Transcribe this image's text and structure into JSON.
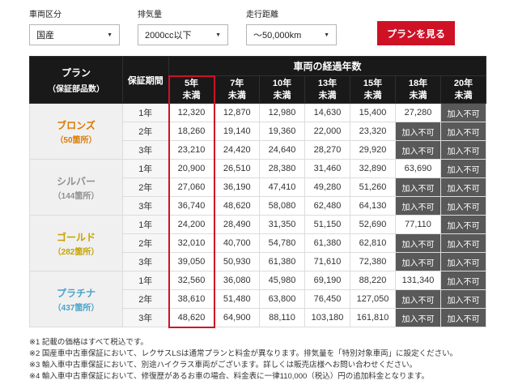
{
  "colors": {
    "accent_red": "#cf1126",
    "header_bg": "#191919",
    "na_bg": "#595959"
  },
  "filters": {
    "vehicle_category": {
      "label": "車両区分",
      "value": "国産"
    },
    "displacement": {
      "label": "排気量",
      "value": "2000cc以下"
    },
    "mileage": {
      "label": "走行距離",
      "value": "～50,000km"
    },
    "submit_label": "プランを見る"
  },
  "table": {
    "header": {
      "plan_line1": "プラン",
      "plan_line2": "（保証部品数）",
      "warranty_period": "保証期間",
      "age_group": "車両の経過年数",
      "age_columns": [
        {
          "line1": "5年",
          "line2": "未満"
        },
        {
          "line1": "7年",
          "line2": "未満"
        },
        {
          "line1": "10年",
          "line2": "未満"
        },
        {
          "line1": "13年",
          "line2": "未満"
        },
        {
          "line1": "15年",
          "line2": "未満"
        },
        {
          "line1": "18年",
          "line2": "未満"
        },
        {
          "line1": "20年",
          "line2": "未満"
        }
      ]
    },
    "not_available_label": "加入不可",
    "highlighted_column": 0,
    "plans": [
      {
        "name": "ブロンズ",
        "parts": "（50箇所）",
        "color": "#db7a00",
        "rows": [
          {
            "period": "1年",
            "prices": [
              "12,320",
              "12,870",
              "12,980",
              "14,630",
              "15,400",
              "27,280",
              "加入不可"
            ]
          },
          {
            "period": "2年",
            "prices": [
              "18,260",
              "19,140",
              "19,360",
              "22,000",
              "23,320",
              "加入不可",
              "加入不可"
            ]
          },
          {
            "period": "3年",
            "prices": [
              "23,210",
              "24,420",
              "24,640",
              "28,270",
              "29,920",
              "加入不可",
              "加入不可"
            ]
          }
        ]
      },
      {
        "name": "シルバー",
        "parts": "（144箇所）",
        "color": "#8f8f8f",
        "rows": [
          {
            "period": "1年",
            "prices": [
              "20,900",
              "26,510",
              "28,380",
              "31,460",
              "32,890",
              "63,690",
              "加入不可"
            ]
          },
          {
            "period": "2年",
            "prices": [
              "27,060",
              "36,190",
              "47,410",
              "49,280",
              "51,260",
              "加入不可",
              "加入不可"
            ]
          },
          {
            "period": "3年",
            "prices": [
              "36,740",
              "48,620",
              "58,080",
              "62,480",
              "64,130",
              "加入不可",
              "加入不可"
            ]
          }
        ]
      },
      {
        "name": "ゴールド",
        "parts": "（282箇所）",
        "color": "#c5a300",
        "rows": [
          {
            "period": "1年",
            "prices": [
              "24,200",
              "28,490",
              "31,350",
              "51,150",
              "52,690",
              "77,110",
              "加入不可"
            ]
          },
          {
            "period": "2年",
            "prices": [
              "32,010",
              "40,700",
              "54,780",
              "61,380",
              "62,810",
              "加入不可",
              "加入不可"
            ]
          },
          {
            "period": "3年",
            "prices": [
              "39,050",
              "50,930",
              "61,380",
              "71,610",
              "72,380",
              "加入不可",
              "加入不可"
            ]
          }
        ]
      },
      {
        "name": "プラチナ",
        "parts": "（437箇所）",
        "color": "#4aa3c9",
        "rows": [
          {
            "period": "1年",
            "prices": [
              "32,560",
              "36,080",
              "45,980",
              "69,190",
              "88,220",
              "131,340",
              "加入不可"
            ]
          },
          {
            "period": "2年",
            "prices": [
              "38,610",
              "51,480",
              "63,800",
              "76,450",
              "127,050",
              "加入不可",
              "加入不可"
            ]
          },
          {
            "period": "3年",
            "prices": [
              "48,620",
              "64,900",
              "88,110",
              "103,180",
              "161,810",
              "加入不可",
              "加入不可"
            ]
          }
        ]
      }
    ]
  },
  "notes": [
    "※1 記載の価格はすべて税込です。",
    "※2 国産車中古車保証において、レクサスLSは通常プランと料金が異なります。排気量を「特別対象車両」に設定ください。",
    "※3 輸入車中古車保証において、別途ハイクラス車両がございます。詳しくは販売店様へお問い合わせください。",
    "※4 輸入車中古車保証において、修復歴があるお車の場合、料金表に一律110,000（税込）円の追加料金となります。"
  ]
}
